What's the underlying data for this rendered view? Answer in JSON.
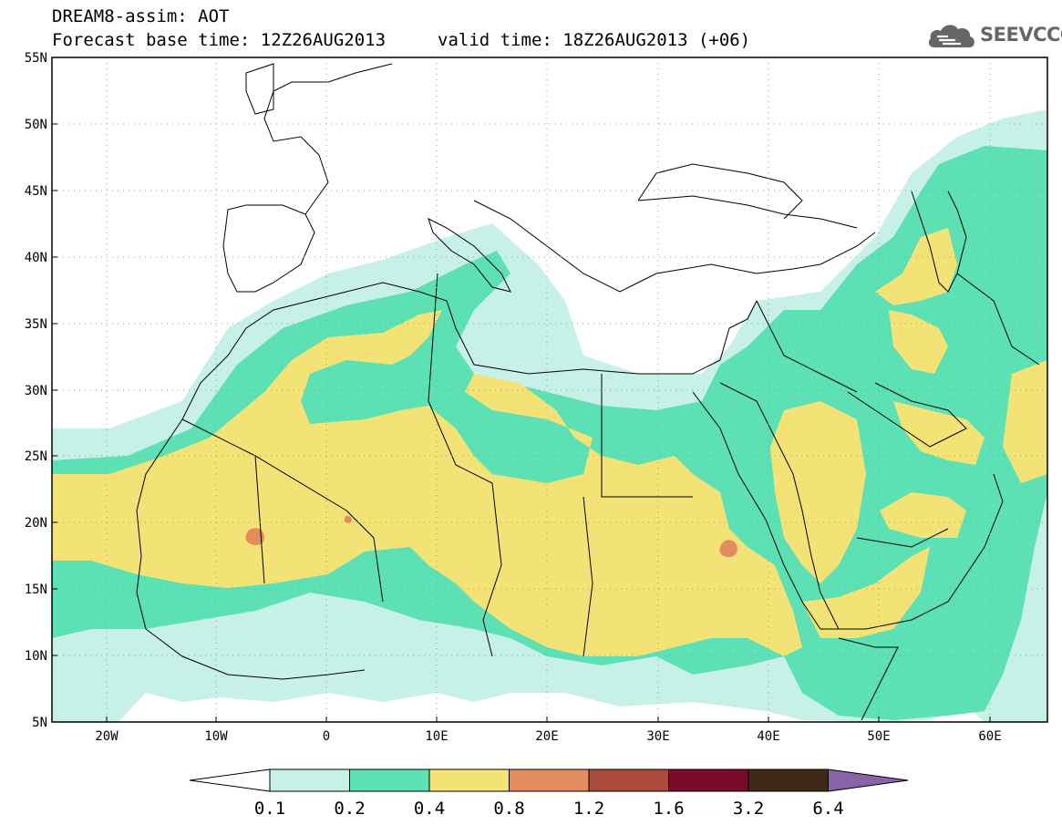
{
  "header": {
    "title_line1": "DREAM8-assim: AOT",
    "title_line2": "Forecast base time: 12Z26AUG2013",
    "valid_time": "valid time: 18Z26AUG2013 (+06)"
  },
  "logo": {
    "text": "SEEVCCC",
    "icon": "cloud-icon",
    "color": "#666666"
  },
  "map": {
    "lat_labels": [
      "55N",
      "50N",
      "45N",
      "40N",
      "35N",
      "30N",
      "25N",
      "20N",
      "15N",
      "10N",
      "5N"
    ],
    "lon_labels": [
      "20W",
      "10W",
      "0",
      "10E",
      "20E",
      "30E",
      "40E",
      "50E",
      "60E"
    ],
    "frame_color": "#000000",
    "gridline_style": "dotted"
  },
  "colorbar": {
    "labels": [
      "0.1",
      "0.2",
      "0.4",
      "0.8",
      "1.2",
      "1.6",
      "3.2",
      "6.4"
    ],
    "colors": [
      "#c6f0e8",
      "#5de0b4",
      "#f3e377",
      "#e58b60",
      "#a94a3b",
      "#7a0b2b",
      "#3e2a16"
    ],
    "under_color": "#ffffff",
    "over_color": "#8a62a8"
  },
  "field_colors": {
    "lvl1": "#c6f0e8",
    "lvl2": "#5de0b4",
    "lvl3": "#f3e377",
    "lvl4": "#e58b60"
  }
}
